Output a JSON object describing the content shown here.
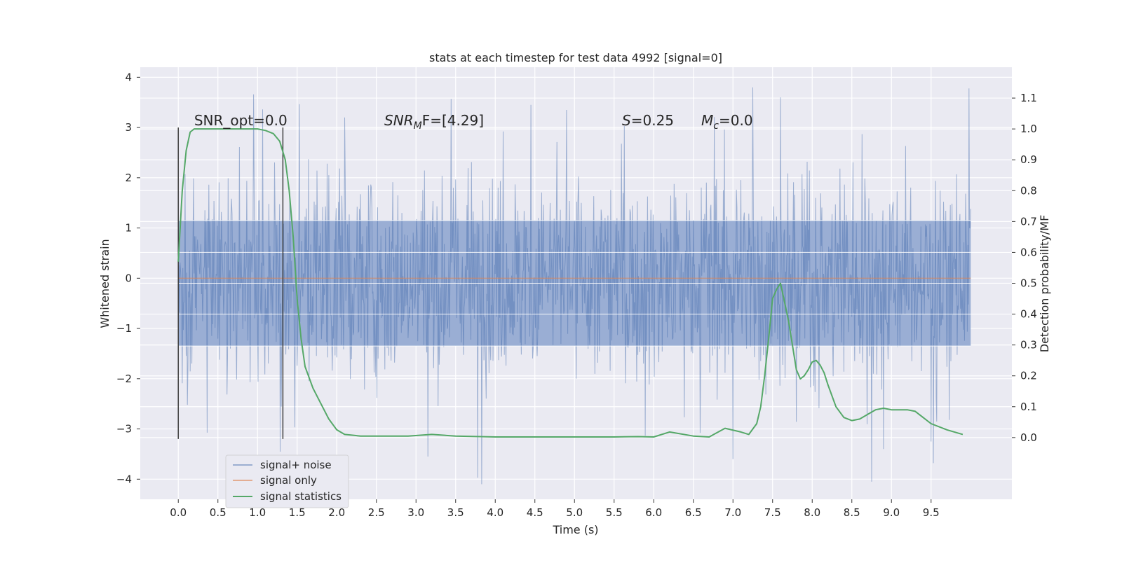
{
  "chart_data": {
    "type": "line",
    "title": "stats at each timestep for test data 4992 [signal=0]",
    "xlabel": "Time (s)",
    "ylabel": "Whitened strain",
    "y2label": "Detection probability/MF",
    "xlim": [
      -0.48,
      10.52
    ],
    "ylim": [
      -4.4,
      4.2
    ],
    "y2lim": [
      -0.2,
      1.2
    ],
    "x_ticks": [
      0.0,
      0.5,
      1.0,
      1.5,
      2.0,
      2.5,
      3.0,
      3.5,
      4.0,
      4.5,
      5.0,
      5.5,
      6.0,
      6.5,
      7.0,
      7.5,
      8.0,
      8.5,
      9.0,
      9.5
    ],
    "x_tick_labels": [
      "0.0",
      "0.5",
      "1.0",
      "1.5",
      "2.0",
      "2.5",
      "3.0",
      "3.5",
      "4.0",
      "4.5",
      "5.0",
      "5.5",
      "6.0",
      "6.5",
      "7.0",
      "7.5",
      "8.0",
      "8.5",
      "9.0",
      "9.5"
    ],
    "y_ticks": [
      -4,
      -3,
      -2,
      -1,
      0,
      1,
      2,
      3,
      4
    ],
    "y_tick_labels": [
      "−4",
      "−3",
      "−2",
      "−1",
      "0",
      "1",
      "2",
      "3",
      "4"
    ],
    "y2_ticks": [
      0.0,
      0.1,
      0.2,
      0.3,
      0.4,
      0.5,
      0.6,
      0.7,
      0.8,
      0.9,
      1.0,
      1.1
    ],
    "y2_tick_labels": [
      "0.0",
      "0.1",
      "0.2",
      "0.3",
      "0.4",
      "0.5",
      "0.6",
      "0.7",
      "0.8",
      "0.9",
      "1.0",
      "1.1"
    ],
    "grid": true,
    "legend_position": "lower-left",
    "noise": {
      "x_range": [
        0.0,
        10.0
      ],
      "typical_amplitude": 1.3,
      "extreme_peaks": [
        {
          "x": 7.25,
          "y": 3.8
        },
        {
          "x": 7.6,
          "y": 3.6
        },
        {
          "x": 4.45,
          "y": 3.45
        },
        {
          "x": 8.75,
          "y": -4.05
        },
        {
          "x": 7.0,
          "y": -3.6
        },
        {
          "x": 3.15,
          "y": -3.55
        },
        {
          "x": 8.9,
          "y": -3.4
        },
        {
          "x": 9.5,
          "y": -3.25
        },
        {
          "x": 2.1,
          "y": 3.2
        },
        {
          "x": 4.9,
          "y": 3.35
        }
      ]
    },
    "series": [
      {
        "name": "signal+ noise",
        "color": "#4c72b0",
        "axis": "left",
        "style": "dense-noise"
      },
      {
        "name": "signal only",
        "color": "#dd8452",
        "axis": "left",
        "x": [
          0.0,
          10.0
        ],
        "values": [
          0.0,
          0.0
        ]
      },
      {
        "name": "signal statistics",
        "color": "#55a868",
        "axis": "right",
        "x": [
          0.0,
          0.05,
          0.1,
          0.15,
          0.2,
          0.3,
          0.5,
          0.8,
          1.0,
          1.1,
          1.2,
          1.28,
          1.35,
          1.4,
          1.45,
          1.5,
          1.55,
          1.6,
          1.7,
          1.8,
          1.9,
          2.0,
          2.1,
          2.3,
          2.6,
          2.9,
          3.2,
          3.5,
          4.0,
          4.5,
          5.0,
          5.5,
          5.8,
          6.0,
          6.2,
          6.5,
          6.7,
          6.9,
          7.1,
          7.2,
          7.3,
          7.35,
          7.4,
          7.45,
          7.5,
          7.55,
          7.6,
          7.65,
          7.7,
          7.75,
          7.8,
          7.85,
          7.9,
          7.95,
          8.0,
          8.05,
          8.1,
          8.15,
          8.2,
          8.3,
          8.4,
          8.5,
          8.6,
          8.7,
          8.8,
          8.9,
          9.0,
          9.2,
          9.3,
          9.4,
          9.5,
          9.7,
          9.9
        ],
        "values": [
          0.57,
          0.8,
          0.93,
          0.99,
          1.0,
          1.0,
          1.0,
          1.0,
          1.0,
          0.995,
          0.985,
          0.96,
          0.9,
          0.8,
          0.65,
          0.45,
          0.32,
          0.23,
          0.16,
          0.11,
          0.06,
          0.025,
          0.01,
          0.005,
          0.005,
          0.005,
          0.01,
          0.005,
          0.002,
          0.002,
          0.002,
          0.002,
          0.003,
          0.002,
          0.018,
          0.005,
          0.002,
          0.03,
          0.018,
          0.01,
          0.045,
          0.1,
          0.2,
          0.32,
          0.45,
          0.48,
          0.5,
          0.44,
          0.38,
          0.3,
          0.22,
          0.19,
          0.2,
          0.22,
          0.245,
          0.25,
          0.235,
          0.21,
          0.17,
          0.1,
          0.065,
          0.055,
          0.06,
          0.075,
          0.09,
          0.095,
          0.09,
          0.09,
          0.085,
          0.065,
          0.045,
          0.025,
          0.01
        ]
      }
    ],
    "vertical_lines": [
      {
        "x": 0.0,
        "ymin": -3.2,
        "ymax": 3.0,
        "color": "#404040"
      },
      {
        "x": 1.32,
        "ymin": -3.2,
        "ymax": 3.0,
        "color": "#404040"
      }
    ],
    "annotations": {
      "snr_opt": {
        "text": "SNR_opt=0.0",
        "x": 0.2,
        "y": 3.0
      },
      "snr_mf_sym": "SNR",
      "snr_mf_sub": "M",
      "snr_mf_rest": "F=[4.29]",
      "snr_mf_x": 2.6,
      "s_sym": "S",
      "s_rest": "=0.25",
      "s_x": 5.6,
      "mc_sym": "M",
      "mc_sub": "c",
      "mc_rest": "=0.0",
      "mc_x": 6.6,
      "ann_y": 3.0
    }
  }
}
